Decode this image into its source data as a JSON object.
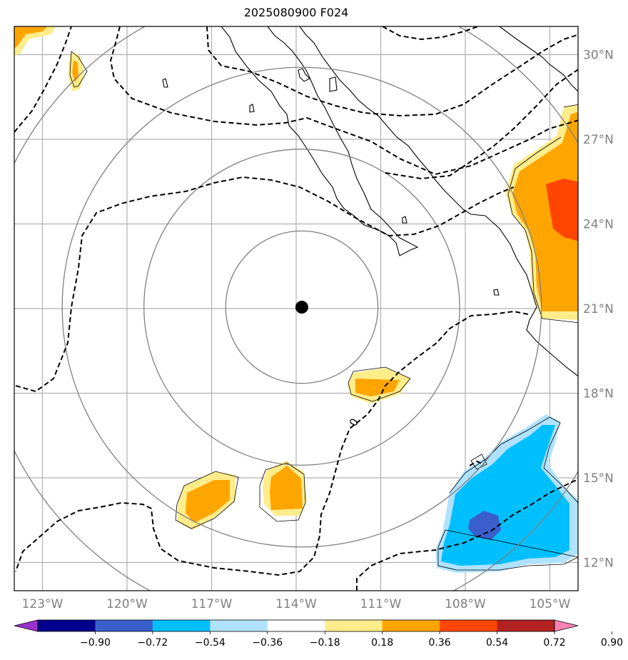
{
  "title": "2025080900 F024",
  "map": {
    "lon_range": [
      -124,
      -104
    ],
    "lat_range": [
      11,
      31
    ],
    "lon_ticks": [
      {
        "value": -123,
        "label": "123°W"
      },
      {
        "value": -120,
        "label": "120°W"
      },
      {
        "value": -117,
        "label": "117°W"
      },
      {
        "value": -114,
        "label": "114°W"
      },
      {
        "value": -111,
        "label": "111°W"
      },
      {
        "value": -108,
        "label": "108°W"
      },
      {
        "value": -105,
        "label": "105°W"
      }
    ],
    "lat_ticks": [
      {
        "value": 30,
        "label": "30°N"
      },
      {
        "value": 27,
        "label": "27°N"
      },
      {
        "value": 24,
        "label": "24°N"
      },
      {
        "value": 21,
        "label": "21°N"
      },
      {
        "value": 18,
        "label": "18°N"
      },
      {
        "value": 15,
        "label": "15°N"
      },
      {
        "value": 12,
        "label": "12°N"
      }
    ],
    "grid": true,
    "storm_center": {
      "lon": -113.8,
      "lat": 21.05
    },
    "range_rings_deg": [
      2.7,
      5.6,
      8.5,
      11.4
    ],
    "contour_label": "0",
    "tick_label_color": "#808080"
  },
  "colorbar": {
    "labels": [
      "−0.90",
      "−0.72",
      "−0.54",
      "−0.36",
      "−0.18",
      "0.18",
      "0.36",
      "0.54",
      "0.72",
      "0.90"
    ],
    "colors": [
      "#9932cc",
      "#00008b",
      "#3a5fcd",
      "#00bfff",
      "#b0e2ff",
      "#ffffff",
      "#ffec8b",
      "#ffa500",
      "#ff4500",
      "#b22222",
      "#ff83b4"
    ]
  },
  "anomaly_colors": {
    "light_yellow": "#ffec8b",
    "orange": "#ffa500",
    "red_orange": "#ff4500",
    "light_blue": "#b0e2ff",
    "cyan": "#00bfff",
    "royal_blue": "#3a5fcd"
  }
}
